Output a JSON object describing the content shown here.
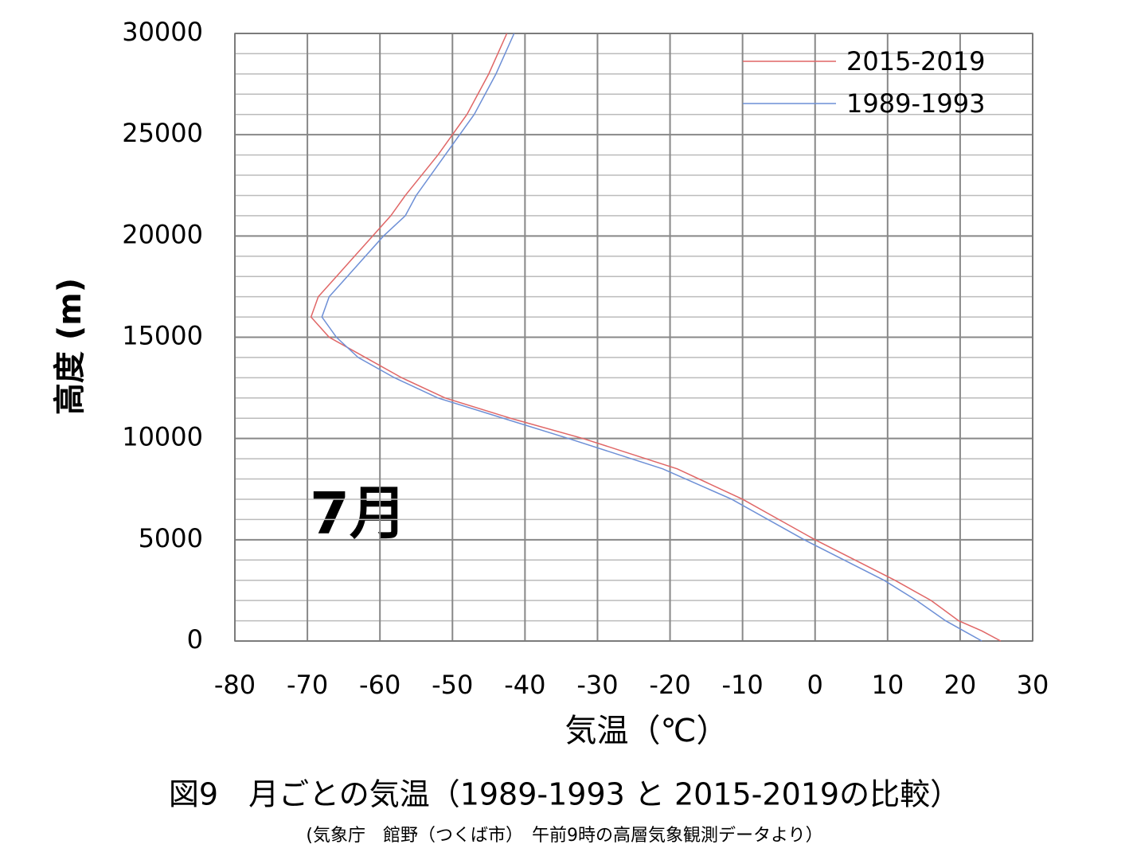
{
  "chart_data": {
    "type": "line",
    "xlabel": "気温（℃）",
    "ylabel": "高度 (m)",
    "annotation": "7月",
    "caption": "図9　月ごとの気温（1989-1993 と 2015-2019の比較）",
    "source": "(気象庁　館野（つくば市）　午前9時の高層気象観測データより）",
    "xlim": [
      -80,
      30
    ],
    "xticks": [
      -80,
      -70,
      -60,
      -50,
      -40,
      -30,
      -20,
      -10,
      0,
      10,
      20,
      30
    ],
    "ylim": [
      0,
      30000
    ],
    "yticks": [
      0,
      5000,
      10000,
      15000,
      20000,
      25000,
      30000
    ],
    "grid": true,
    "minor_grid_step": 1000,
    "legend": "upper right",
    "series": [
      {
        "name": "2015-2019",
        "color": "#e06666",
        "x": [
          25.6,
          23,
          19.8,
          16,
          11,
          0,
          -10,
          -19,
          -32,
          -42,
          -51,
          -57,
          -62,
          -67,
          -69.5,
          -68.5,
          -66,
          -63.5,
          -61,
          -58.5,
          -56.5,
          -52,
          -48,
          -45,
          -42.5
        ],
        "values": [
          0,
          500,
          1000,
          2000,
          3000,
          5000,
          7000,
          8500,
          10000,
          11000,
          12000,
          13000,
          14000,
          15000,
          16000,
          17000,
          18000,
          19000,
          20000,
          21000,
          22000,
          24000,
          26000,
          28000,
          30000
        ]
      },
      {
        "name": "1989-1993",
        "color": "#6d8fd6",
        "x": [
          23,
          20.5,
          18,
          14,
          9.5,
          -1.5,
          -11.5,
          -21,
          -34,
          -43,
          -52,
          -58,
          -63,
          -66,
          -68,
          -67,
          -64.5,
          -62,
          -59.5,
          -56.5,
          -55,
          -51,
          -47,
          -44,
          -41.5
        ],
        "values": [
          0,
          500,
          1000,
          2000,
          3000,
          5000,
          7000,
          8500,
          10000,
          11000,
          12000,
          13000,
          14000,
          15000,
          16000,
          17000,
          18000,
          19000,
          20000,
          21000,
          22000,
          24000,
          26000,
          28000,
          30000
        ]
      }
    ]
  }
}
